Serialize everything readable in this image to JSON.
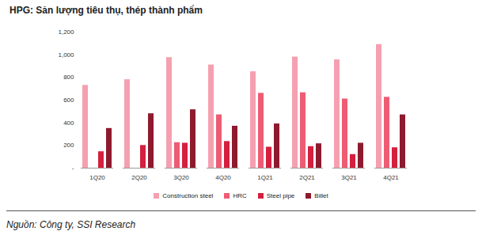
{
  "chart_data": {
    "type": "bar",
    "title": "HPG: Sản lượng tiêu thụ, thép thành phẩm",
    "source": "Nguồn: Công ty, SSI Research",
    "categories": [
      "1Q20",
      "2Q20",
      "3Q20",
      "4Q20",
      "1Q21",
      "2Q21",
      "3Q21",
      "4Q21"
    ],
    "series": [
      {
        "name": "Construction steel",
        "color": "#f5a0b0",
        "values": [
          730,
          780,
          975,
          910,
          850,
          980,
          955,
          1090
        ]
      },
      {
        "name": "HRC",
        "color": "#ee5c74",
        "values": [
          null,
          null,
          225,
          470,
          660,
          665,
          610,
          625
        ]
      },
      {
        "name": "Steel pipe",
        "color": "#d41f3f",
        "values": [
          145,
          200,
          220,
          235,
          185,
          190,
          120,
          180
        ]
      },
      {
        "name": "Billet",
        "color": "#8e1a2e",
        "values": [
          350,
          480,
          515,
          370,
          390,
          215,
          220,
          470
        ]
      }
    ],
    "ylim": [
      0,
      1200
    ],
    "yticks": [
      {
        "value": 0,
        "label": "-"
      },
      200,
      400,
      600,
      800,
      {
        "value": 1000,
        "label": "1,000"
      },
      {
        "value": 1200,
        "label": "1,200"
      }
    ],
    "grid": false,
    "legend": "bottom"
  }
}
